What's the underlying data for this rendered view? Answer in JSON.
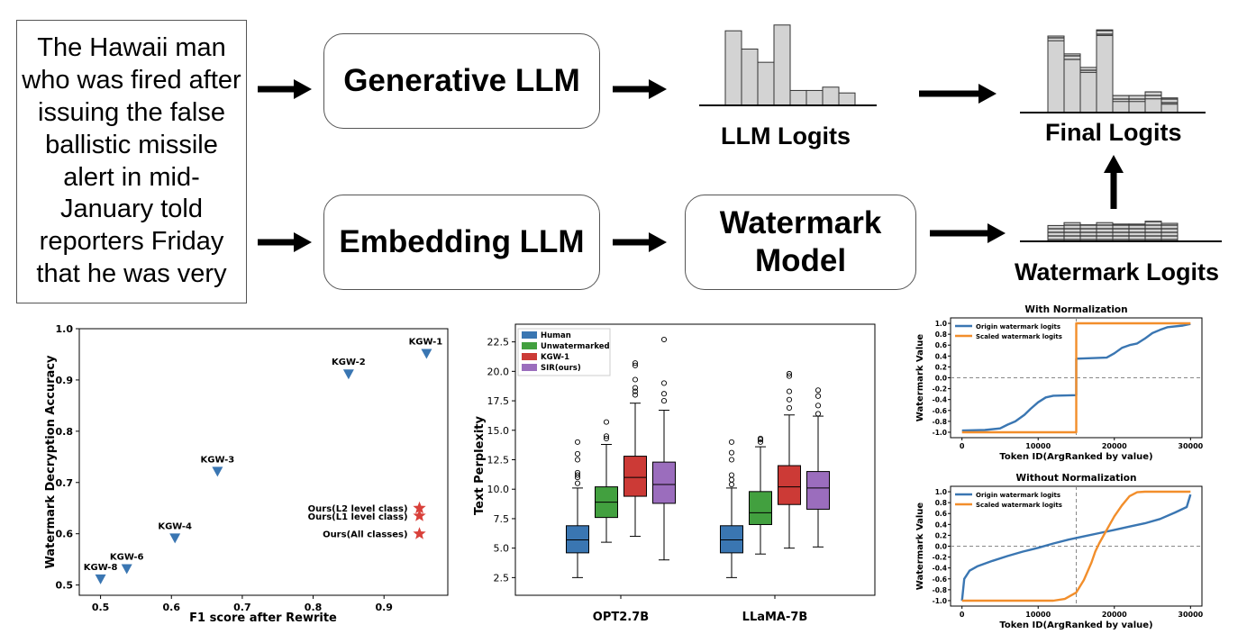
{
  "top": {
    "input_text": "The Hawaii man who was fired after issuing the false ballistic missile alert in mid-January told reporters Friday that he was very",
    "generative_llm": "Generative LLM",
    "embedding_llm": "Embedding LLM",
    "watermark_model": "Watermark Model",
    "llm_logits": "LLM Logits",
    "final_logits": "Final Logits",
    "watermark_logits": "Watermark Logits",
    "colors": {
      "bar_fill": "#d3d3d3",
      "bar_stroke": "#333333"
    },
    "llm_bars": [
      0.9,
      0.68,
      0.52,
      0.97,
      0.18,
      0.18,
      0.22,
      0.15
    ],
    "watermark_bars": [
      0.22,
      0.26,
      0.23,
      0.26,
      0.24,
      0.24,
      0.28,
      0.25
    ],
    "icons": [
      "right-arrow-icon",
      "up-arrow-icon"
    ]
  },
  "scatter": {
    "xlabel": "F1 score after Rewrite",
    "ylabel": "Watermark Decryption Accuracy",
    "xticks": [
      "0.5",
      "0.6",
      "0.7",
      "0.8",
      "0.9"
    ],
    "yticks": [
      "0.5",
      "0.6",
      "0.7",
      "0.8",
      "0.9",
      "1.0"
    ],
    "xlim": [
      0.47,
      0.99
    ],
    "ylim": [
      0.48,
      1.0
    ],
    "colors": {
      "triangle": "#3a76b2",
      "star": "#d9403a"
    },
    "chart_data": {
      "type": "scatter",
      "series": [
        {
          "name": "KGW",
          "points": [
            {
              "label": "KGW-1",
              "x": 0.96,
              "y": 0.95
            },
            {
              "label": "KGW-2",
              "x": 0.85,
              "y": 0.91
            },
            {
              "label": "KGW-3",
              "x": 0.665,
              "y": 0.72
            },
            {
              "label": "KGW-4",
              "x": 0.605,
              "y": 0.59
            },
            {
              "label": "KGW-6",
              "x": 0.537,
              "y": 0.53
            },
            {
              "label": "KGW-8",
              "x": 0.5,
              "y": 0.51
            }
          ]
        },
        {
          "name": "Ours",
          "points": [
            {
              "label": "Ours(L2 level class)",
              "x": 0.95,
              "y": 0.65
            },
            {
              "label": "Ours(L1 level class)",
              "x": 0.95,
              "y": 0.635
            },
            {
              "label": "Ours(All classes)",
              "x": 0.95,
              "y": 0.6
            }
          ]
        }
      ]
    }
  },
  "boxplot": {
    "ylabel": "Text Perplexity",
    "groups": [
      "OPT2.7B",
      "LLaMA-7B"
    ],
    "yticks": [
      "2.5",
      "5.0",
      "7.5",
      "10.0",
      "12.5",
      "15.0",
      "17.5",
      "20.0",
      "22.5"
    ],
    "ylim": [
      1.0,
      24.0
    ],
    "legend": [
      {
        "name": "Human",
        "color": "#3a76b2"
      },
      {
        "name": "Unwatermarked",
        "color": "#42a03f"
      },
      {
        "name": "KGW-1",
        "color": "#cc3a36"
      },
      {
        "name": "SIR(ours)",
        "color": "#9b6dbd"
      }
    ],
    "chart_data": {
      "type": "box",
      "categories": [
        "OPT2.7B",
        "LLaMA-7B"
      ],
      "series": [
        {
          "name": "Human",
          "boxes": [
            {
              "min": 2.5,
              "q1": 4.6,
              "median": 5.7,
              "q3": 6.9,
              "max": 10.1,
              "outliers": [
                10.5,
                11.0,
                11.2,
                11.4,
                12.5,
                13.0,
                14.0
              ]
            },
            {
              "min": 2.5,
              "q1": 4.6,
              "median": 5.7,
              "q3": 6.9,
              "max": 10.1,
              "outliers": [
                10.4,
                10.8,
                11.2,
                12.5,
                13.1,
                14.0
              ]
            }
          ]
        },
        {
          "name": "Unwatermarked",
          "boxes": [
            {
              "min": 5.5,
              "q1": 7.6,
              "median": 8.9,
              "q3": 10.2,
              "max": 13.8,
              "outliers": [
                14.3,
                14.5,
                15.7
              ]
            },
            {
              "min": 4.5,
              "q1": 7.0,
              "median": 8.0,
              "q3": 9.8,
              "max": 13.6,
              "outliers": [
                14.0,
                14.2,
                14.3
              ]
            }
          ]
        },
        {
          "name": "KGW-1",
          "boxes": [
            {
              "min": 6.0,
              "q1": 9.4,
              "median": 11.0,
              "q3": 12.8,
              "max": 17.3,
              "outliers": [
                18.0,
                18.3,
                18.6,
                19.3,
                20.5,
                20.7
              ]
            },
            {
              "min": 5.0,
              "q1": 8.7,
              "median": 10.2,
              "q3": 12.0,
              "max": 16.3,
              "outliers": [
                16.9,
                17.6,
                18.3,
                19.6,
                19.8
              ]
            }
          ]
        },
        {
          "name": "SIR(ours)",
          "boxes": [
            {
              "min": 4.0,
              "q1": 8.8,
              "median": 10.4,
              "q3": 12.3,
              "max": 16.7,
              "outliers": [
                17.5,
                18.1,
                19.0,
                22.7
              ]
            },
            {
              "min": 5.1,
              "q1": 8.3,
              "median": 10.1,
              "q3": 11.5,
              "max": 16.2,
              "outliers": [
                16.4,
                17.1,
                17.9,
                18.4
              ]
            }
          ]
        }
      ]
    }
  },
  "norm_top": {
    "title": "With Normalization",
    "xlabel": "Token ID(ArgRanked by value)",
    "ylabel": "Watermark Value",
    "legend": [
      "Origin watermark logits",
      "Scaled watermark logits"
    ],
    "colors": {
      "origin": "#3a76b2",
      "scaled": "#f28e2b"
    },
    "xticks": [
      "0",
      "10000",
      "20000",
      "30000"
    ],
    "yticks": [
      "-1.0",
      "-0.8",
      "-0.6",
      "-0.4",
      "-0.2",
      "0.0",
      "0.2",
      "0.4",
      "0.6",
      "0.8",
      "1.0"
    ],
    "chart_data": {
      "type": "line",
      "xlim": [
        -1500,
        31500
      ],
      "ylim": [
        -1.1,
        1.1
      ],
      "vline_x": 15000,
      "hline_y": 0,
      "series": [
        {
          "name": "Origin watermark logits",
          "points": [
            [
              0,
              -0.97
            ],
            [
              3000,
              -0.96
            ],
            [
              5000,
              -0.93
            ],
            [
              6000,
              -0.86
            ],
            [
              7000,
              -0.8
            ],
            [
              8200,
              -0.68
            ],
            [
              9000,
              -0.57
            ],
            [
              10000,
              -0.45
            ],
            [
              11000,
              -0.36
            ],
            [
              12000,
              -0.33
            ],
            [
              15000,
              -0.32
            ],
            [
              15000,
              0.35
            ],
            [
              17000,
              0.36
            ],
            [
              19000,
              0.37
            ],
            [
              20000,
              0.45
            ],
            [
              21000,
              0.55
            ],
            [
              22000,
              0.6
            ],
            [
              23000,
              0.63
            ],
            [
              24000,
              0.72
            ],
            [
              25000,
              0.82
            ],
            [
              26000,
              0.88
            ],
            [
              27000,
              0.93
            ],
            [
              29000,
              0.96
            ],
            [
              30000,
              0.99
            ]
          ]
        },
        {
          "name": "Scaled watermark logits",
          "points": [
            [
              0,
              -1.0
            ],
            [
              15000,
              -1.0
            ],
            [
              15000,
              1.0
            ],
            [
              30000,
              1.0
            ]
          ]
        }
      ]
    }
  },
  "norm_bottom": {
    "title": "Without Normalization",
    "xlabel": "Token ID(ArgRanked by value)",
    "ylabel": "Watermark Value",
    "legend": [
      "Origin watermark logits",
      "Scaled watermark logits"
    ],
    "colors": {
      "origin": "#3a76b2",
      "scaled": "#f28e2b"
    },
    "xticks": [
      "0",
      "10000",
      "20000",
      "30000"
    ],
    "yticks": [
      "-1.0",
      "-0.8",
      "-0.6",
      "-0.4",
      "-0.2",
      "0.0",
      "0.2",
      "0.4",
      "0.6",
      "0.8",
      "1.0"
    ],
    "chart_data": {
      "type": "line",
      "xlim": [
        -1500,
        31500
      ],
      "ylim": [
        -1.1,
        1.1
      ],
      "vline_x": 15000,
      "hline_y": 0,
      "series": [
        {
          "name": "Origin watermark logits",
          "points": [
            [
              0,
              -1.0
            ],
            [
              300,
              -0.6
            ],
            [
              1000,
              -0.45
            ],
            [
              2000,
              -0.37
            ],
            [
              4000,
              -0.27
            ],
            [
              6000,
              -0.18
            ],
            [
              8000,
              -0.1
            ],
            [
              10000,
              -0.03
            ],
            [
              12000,
              0.05
            ],
            [
              14000,
              0.12
            ],
            [
              16000,
              0.18
            ],
            [
              18000,
              0.24
            ],
            [
              20000,
              0.3
            ],
            [
              22000,
              0.36
            ],
            [
              24000,
              0.42
            ],
            [
              26000,
              0.5
            ],
            [
              28000,
              0.62
            ],
            [
              29500,
              0.72
            ],
            [
              30000,
              0.95
            ]
          ]
        },
        {
          "name": "Scaled watermark logits",
          "points": [
            [
              0,
              -1.0
            ],
            [
              12000,
              -1.0
            ],
            [
              13500,
              -0.97
            ],
            [
              15000,
              -0.85
            ],
            [
              16000,
              -0.62
            ],
            [
              17000,
              -0.3
            ],
            [
              17500,
              -0.1
            ],
            [
              18000,
              0.05
            ],
            [
              19000,
              0.3
            ],
            [
              20000,
              0.55
            ],
            [
              21000,
              0.75
            ],
            [
              22000,
              0.92
            ],
            [
              23000,
              0.99
            ],
            [
              24000,
              1.0
            ],
            [
              30000,
              1.0
            ]
          ]
        }
      ]
    }
  }
}
